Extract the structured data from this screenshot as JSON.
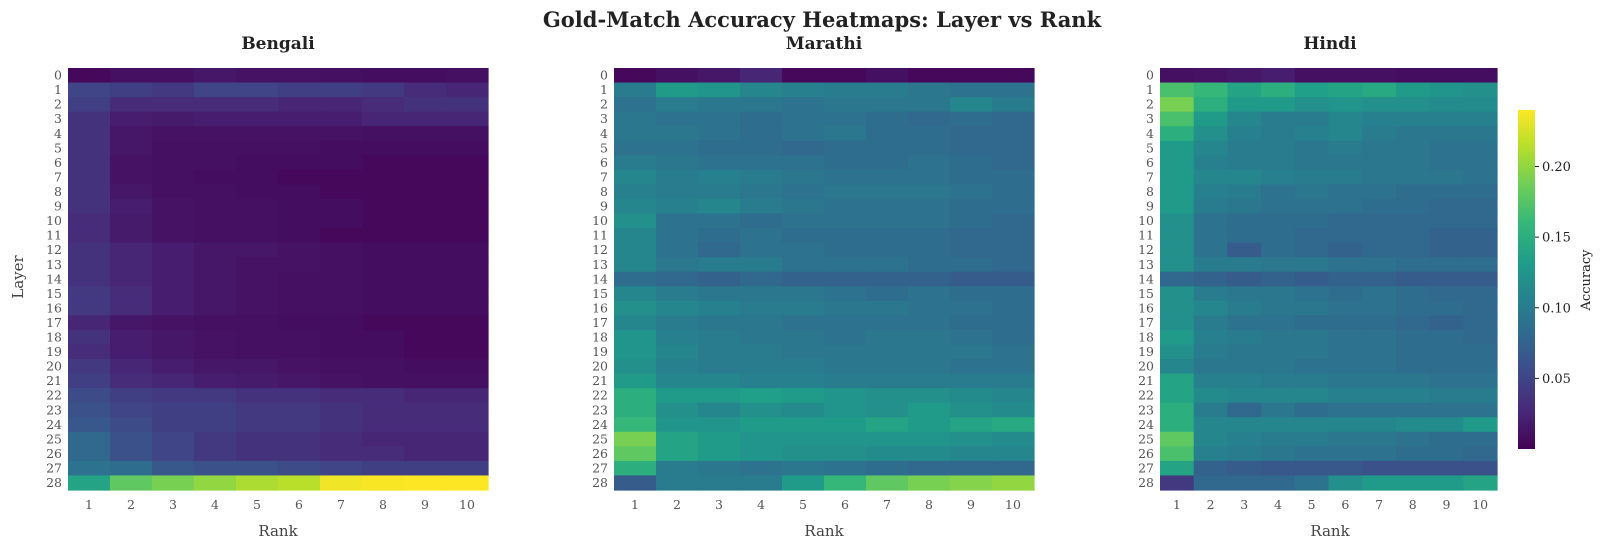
{
  "figure": {
    "title": "Gold-Match Accuracy Heatmaps: Layer vs Rank"
  },
  "colormap": {
    "name": "viridis",
    "stops": [
      "#440154",
      "#482878",
      "#3e4989",
      "#31688e",
      "#26828e",
      "#1f9e89",
      "#35b779",
      "#6ece58",
      "#b5de2b",
      "#fde725"
    ],
    "vmin": 0.0,
    "vmax": 0.24,
    "ticks": [
      0.05,
      0.1,
      0.15,
      0.2
    ],
    "tick_labels": [
      "0.05",
      "0.10",
      "0.15",
      "0.20"
    ],
    "label": "Accuracy"
  },
  "chart_data": [
    {
      "type": "heatmap",
      "title": "Bengali",
      "xlabel": "Rank",
      "ylabel": "Layer",
      "x": [
        1,
        2,
        3,
        4,
        5,
        6,
        7,
        8,
        9,
        10
      ],
      "y": [
        0,
        1,
        2,
        3,
        4,
        5,
        6,
        7,
        8,
        9,
        10,
        11,
        12,
        13,
        14,
        15,
        16,
        17,
        18,
        19,
        20,
        21,
        22,
        23,
        24,
        25,
        26,
        27,
        28
      ],
      "values": [
        [
          0.005,
          0.01,
          0.01,
          0.015,
          0.012,
          0.012,
          0.01,
          0.008,
          0.008,
          0.01
        ],
        [
          0.05,
          0.045,
          0.04,
          0.05,
          0.05,
          0.045,
          0.045,
          0.04,
          0.03,
          0.025
        ],
        [
          0.045,
          0.03,
          0.03,
          0.03,
          0.03,
          0.025,
          0.025,
          0.03,
          0.035,
          0.035
        ],
        [
          0.035,
          0.02,
          0.018,
          0.02,
          0.02,
          0.02,
          0.02,
          0.025,
          0.025,
          0.025
        ],
        [
          0.035,
          0.015,
          0.012,
          0.012,
          0.012,
          0.012,
          0.012,
          0.01,
          0.01,
          0.01
        ],
        [
          0.035,
          0.015,
          0.01,
          0.01,
          0.01,
          0.01,
          0.008,
          0.008,
          0.008,
          0.008
        ],
        [
          0.035,
          0.012,
          0.01,
          0.01,
          0.008,
          0.008,
          0.008,
          0.005,
          0.005,
          0.005
        ],
        [
          0.035,
          0.012,
          0.01,
          0.008,
          0.008,
          0.005,
          0.005,
          0.005,
          0.005,
          0.005
        ],
        [
          0.035,
          0.015,
          0.01,
          0.01,
          0.008,
          0.008,
          0.005,
          0.005,
          0.005,
          0.005
        ],
        [
          0.035,
          0.02,
          0.012,
          0.01,
          0.01,
          0.008,
          0.008,
          0.005,
          0.005,
          0.005
        ],
        [
          0.03,
          0.018,
          0.012,
          0.01,
          0.01,
          0.008,
          0.008,
          0.005,
          0.005,
          0.005
        ],
        [
          0.03,
          0.018,
          0.012,
          0.01,
          0.01,
          0.008,
          0.005,
          0.005,
          0.005,
          0.005
        ],
        [
          0.035,
          0.025,
          0.02,
          0.015,
          0.015,
          0.012,
          0.01,
          0.008,
          0.008,
          0.008
        ],
        [
          0.035,
          0.025,
          0.02,
          0.015,
          0.012,
          0.012,
          0.01,
          0.008,
          0.008,
          0.008
        ],
        [
          0.035,
          0.025,
          0.02,
          0.015,
          0.012,
          0.01,
          0.01,
          0.008,
          0.008,
          0.008
        ],
        [
          0.04,
          0.03,
          0.02,
          0.015,
          0.012,
          0.01,
          0.01,
          0.008,
          0.008,
          0.008
        ],
        [
          0.04,
          0.03,
          0.02,
          0.015,
          0.012,
          0.01,
          0.01,
          0.008,
          0.008,
          0.008
        ],
        [
          0.025,
          0.015,
          0.012,
          0.01,
          0.01,
          0.008,
          0.008,
          0.005,
          0.005,
          0.005
        ],
        [
          0.035,
          0.02,
          0.015,
          0.012,
          0.01,
          0.01,
          0.008,
          0.008,
          0.005,
          0.005
        ],
        [
          0.03,
          0.02,
          0.015,
          0.012,
          0.01,
          0.01,
          0.008,
          0.008,
          0.005,
          0.005
        ],
        [
          0.04,
          0.025,
          0.02,
          0.015,
          0.015,
          0.012,
          0.01,
          0.01,
          0.008,
          0.008
        ],
        [
          0.045,
          0.03,
          0.025,
          0.02,
          0.018,
          0.015,
          0.012,
          0.01,
          0.01,
          0.01
        ],
        [
          0.055,
          0.045,
          0.04,
          0.04,
          0.035,
          0.035,
          0.03,
          0.03,
          0.025,
          0.025
        ],
        [
          0.06,
          0.05,
          0.045,
          0.045,
          0.04,
          0.04,
          0.035,
          0.03,
          0.03,
          0.03
        ],
        [
          0.065,
          0.055,
          0.045,
          0.045,
          0.04,
          0.04,
          0.035,
          0.03,
          0.03,
          0.03
        ],
        [
          0.08,
          0.06,
          0.05,
          0.04,
          0.035,
          0.035,
          0.03,
          0.025,
          0.025,
          0.025
        ],
        [
          0.08,
          0.06,
          0.05,
          0.04,
          0.035,
          0.035,
          0.03,
          0.03,
          0.025,
          0.025
        ],
        [
          0.09,
          0.085,
          0.065,
          0.06,
          0.06,
          0.055,
          0.05,
          0.045,
          0.045,
          0.045
        ],
        [
          0.14,
          0.18,
          0.19,
          0.2,
          0.21,
          0.215,
          0.235,
          0.238,
          0.24,
          0.24
        ]
      ]
    },
    {
      "type": "heatmap",
      "title": "Marathi",
      "xlabel": "Rank",
      "ylabel": "",
      "x": [
        1,
        2,
        3,
        4,
        5,
        6,
        7,
        8,
        9,
        10
      ],
      "y": [
        0,
        1,
        2,
        3,
        4,
        5,
        6,
        7,
        8,
        9,
        10,
        11,
        12,
        13,
        14,
        15,
        16,
        17,
        18,
        19,
        20,
        21,
        22,
        23,
        24,
        25,
        26,
        27,
        28
      ],
      "values": [
        [
          0.005,
          0.01,
          0.015,
          0.025,
          0.005,
          0.005,
          0.01,
          0.005,
          0.005,
          0.005
        ],
        [
          0.1,
          0.13,
          0.125,
          0.11,
          0.105,
          0.1,
          0.1,
          0.095,
          0.09,
          0.09
        ],
        [
          0.09,
          0.1,
          0.095,
          0.095,
          0.09,
          0.095,
          0.095,
          0.095,
          0.11,
          0.1
        ],
        [
          0.095,
          0.09,
          0.09,
          0.085,
          0.09,
          0.09,
          0.085,
          0.08,
          0.085,
          0.08
        ],
        [
          0.095,
          0.095,
          0.09,
          0.085,
          0.09,
          0.095,
          0.085,
          0.085,
          0.08,
          0.08
        ],
        [
          0.09,
          0.09,
          0.085,
          0.085,
          0.08,
          0.085,
          0.085,
          0.085,
          0.08,
          0.08
        ],
        [
          0.1,
          0.095,
          0.09,
          0.09,
          0.09,
          0.085,
          0.085,
          0.09,
          0.085,
          0.08
        ],
        [
          0.11,
          0.1,
          0.105,
          0.1,
          0.095,
          0.09,
          0.09,
          0.09,
          0.085,
          0.085
        ],
        [
          0.105,
          0.1,
          0.1,
          0.095,
          0.09,
          0.095,
          0.095,
          0.095,
          0.09,
          0.085
        ],
        [
          0.11,
          0.105,
          0.11,
          0.1,
          0.095,
          0.09,
          0.09,
          0.09,
          0.085,
          0.085
        ],
        [
          0.12,
          0.09,
          0.09,
          0.085,
          0.09,
          0.09,
          0.09,
          0.09,
          0.085,
          0.08
        ],
        [
          0.11,
          0.09,
          0.085,
          0.09,
          0.085,
          0.085,
          0.085,
          0.085,
          0.08,
          0.08
        ],
        [
          0.11,
          0.09,
          0.08,
          0.09,
          0.09,
          0.085,
          0.085,
          0.085,
          0.08,
          0.08
        ],
        [
          0.11,
          0.095,
          0.1,
          0.1,
          0.09,
          0.09,
          0.09,
          0.085,
          0.085,
          0.08
        ],
        [
          0.085,
          0.08,
          0.075,
          0.08,
          0.075,
          0.075,
          0.075,
          0.075,
          0.07,
          0.07
        ],
        [
          0.11,
          0.1,
          0.095,
          0.095,
          0.095,
          0.09,
          0.085,
          0.09,
          0.085,
          0.085
        ],
        [
          0.12,
          0.11,
          0.105,
          0.1,
          0.1,
          0.095,
          0.095,
          0.09,
          0.09,
          0.085
        ],
        [
          0.11,
          0.1,
          0.095,
          0.095,
          0.09,
          0.09,
          0.09,
          0.09,
          0.085,
          0.085
        ],
        [
          0.125,
          0.105,
          0.1,
          0.095,
          0.095,
          0.09,
          0.095,
          0.095,
          0.09,
          0.085
        ],
        [
          0.125,
          0.11,
          0.1,
          0.1,
          0.095,
          0.095,
          0.095,
          0.095,
          0.095,
          0.09
        ],
        [
          0.12,
          0.105,
          0.1,
          0.1,
          0.1,
          0.095,
          0.095,
          0.095,
          0.09,
          0.09
        ],
        [
          0.13,
          0.11,
          0.11,
          0.105,
          0.105,
          0.1,
          0.1,
          0.1,
          0.1,
          0.1
        ],
        [
          0.15,
          0.13,
          0.13,
          0.135,
          0.13,
          0.125,
          0.12,
          0.12,
          0.115,
          0.11
        ],
        [
          0.15,
          0.12,
          0.11,
          0.12,
          0.115,
          0.125,
          0.12,
          0.13,
          0.12,
          0.115
        ],
        [
          0.16,
          0.125,
          0.125,
          0.13,
          0.13,
          0.13,
          0.14,
          0.13,
          0.14,
          0.145
        ],
        [
          0.19,
          0.14,
          0.13,
          0.125,
          0.125,
          0.125,
          0.125,
          0.125,
          0.12,
          0.115
        ],
        [
          0.18,
          0.14,
          0.13,
          0.125,
          0.12,
          0.12,
          0.115,
          0.115,
          0.11,
          0.11
        ],
        [
          0.15,
          0.1,
          0.095,
          0.09,
          0.095,
          0.09,
          0.085,
          0.08,
          0.08,
          0.08
        ],
        [
          0.07,
          0.1,
          0.1,
          0.1,
          0.13,
          0.16,
          0.18,
          0.19,
          0.195,
          0.2
        ]
      ]
    },
    {
      "type": "heatmap",
      "title": "Hindi",
      "xlabel": "Rank",
      "ylabel": "",
      "x": [
        1,
        2,
        3,
        4,
        5,
        6,
        7,
        8,
        9,
        10
      ],
      "y": [
        0,
        1,
        2,
        3,
        4,
        5,
        6,
        7,
        8,
        9,
        10,
        11,
        12,
        13,
        14,
        15,
        16,
        17,
        18,
        19,
        20,
        21,
        22,
        23,
        24,
        25,
        26,
        27,
        28
      ],
      "values": [
        [
          0.01,
          0.012,
          0.015,
          0.02,
          0.01,
          0.01,
          0.01,
          0.008,
          0.008,
          0.008
        ],
        [
          0.17,
          0.16,
          0.14,
          0.15,
          0.135,
          0.14,
          0.145,
          0.13,
          0.125,
          0.12
        ],
        [
          0.19,
          0.15,
          0.13,
          0.13,
          0.12,
          0.125,
          0.12,
          0.12,
          0.115,
          0.115
        ],
        [
          0.17,
          0.13,
          0.11,
          0.1,
          0.1,
          0.11,
          0.105,
          0.105,
          0.105,
          0.105
        ],
        [
          0.15,
          0.12,
          0.105,
          0.1,
          0.105,
          0.11,
          0.1,
          0.095,
          0.095,
          0.095
        ],
        [
          0.13,
          0.11,
          0.1,
          0.1,
          0.095,
          0.1,
          0.095,
          0.095,
          0.09,
          0.09
        ],
        [
          0.13,
          0.105,
          0.1,
          0.1,
          0.095,
          0.095,
          0.095,
          0.095,
          0.09,
          0.09
        ],
        [
          0.13,
          0.11,
          0.11,
          0.105,
          0.1,
          0.1,
          0.095,
          0.095,
          0.095,
          0.09
        ],
        [
          0.13,
          0.105,
          0.1,
          0.09,
          0.095,
          0.09,
          0.09,
          0.085,
          0.085,
          0.085
        ],
        [
          0.13,
          0.1,
          0.095,
          0.09,
          0.09,
          0.09,
          0.085,
          0.085,
          0.08,
          0.08
        ],
        [
          0.12,
          0.09,
          0.085,
          0.085,
          0.085,
          0.08,
          0.08,
          0.08,
          0.08,
          0.08
        ],
        [
          0.12,
          0.09,
          0.085,
          0.085,
          0.08,
          0.08,
          0.08,
          0.08,
          0.075,
          0.075
        ],
        [
          0.12,
          0.09,
          0.07,
          0.085,
          0.08,
          0.075,
          0.08,
          0.08,
          0.075,
          0.075
        ],
        [
          0.12,
          0.1,
          0.1,
          0.095,
          0.095,
          0.09,
          0.09,
          0.085,
          0.085,
          0.085
        ],
        [
          0.08,
          0.075,
          0.07,
          0.075,
          0.07,
          0.075,
          0.075,
          0.07,
          0.07,
          0.07
        ],
        [
          0.12,
          0.1,
          0.095,
          0.095,
          0.09,
          0.085,
          0.09,
          0.085,
          0.08,
          0.08
        ],
        [
          0.12,
          0.11,
          0.1,
          0.095,
          0.095,
          0.09,
          0.09,
          0.085,
          0.085,
          0.08
        ],
        [
          0.12,
          0.1,
          0.09,
          0.09,
          0.085,
          0.085,
          0.085,
          0.08,
          0.075,
          0.08
        ],
        [
          0.13,
          0.105,
          0.1,
          0.095,
          0.095,
          0.09,
          0.09,
          0.085,
          0.085,
          0.08
        ],
        [
          0.12,
          0.1,
          0.095,
          0.095,
          0.095,
          0.09,
          0.09,
          0.085,
          0.085,
          0.085
        ],
        [
          0.11,
          0.095,
          0.095,
          0.095,
          0.09,
          0.09,
          0.09,
          0.085,
          0.085,
          0.085
        ],
        [
          0.14,
          0.105,
          0.105,
          0.1,
          0.1,
          0.095,
          0.095,
          0.095,
          0.09,
          0.09
        ],
        [
          0.14,
          0.115,
          0.11,
          0.11,
          0.11,
          0.105,
          0.105,
          0.105,
          0.1,
          0.1
        ],
        [
          0.15,
          0.1,
          0.08,
          0.095,
          0.085,
          0.09,
          0.09,
          0.09,
          0.09,
          0.09
        ],
        [
          0.15,
          0.11,
          0.11,
          0.11,
          0.11,
          0.11,
          0.11,
          0.115,
          0.115,
          0.13
        ],
        [
          0.18,
          0.11,
          0.105,
          0.1,
          0.1,
          0.095,
          0.095,
          0.09,
          0.085,
          0.085
        ],
        [
          0.17,
          0.105,
          0.1,
          0.095,
          0.09,
          0.09,
          0.09,
          0.085,
          0.085,
          0.08
        ],
        [
          0.14,
          0.075,
          0.07,
          0.065,
          0.065,
          0.065,
          0.06,
          0.06,
          0.06,
          0.06
        ],
        [
          0.04,
          0.08,
          0.08,
          0.08,
          0.09,
          0.12,
          0.13,
          0.13,
          0.13,
          0.14
        ]
      ]
    }
  ]
}
